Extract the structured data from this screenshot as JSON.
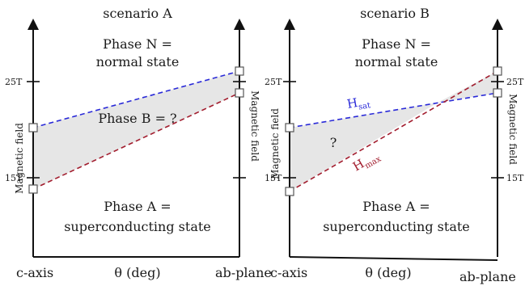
{
  "panels": [
    {
      "title": "scenario A",
      "phase_n": [
        "Phase N =",
        "normal state"
      ],
      "phase_a": [
        "Phase A =",
        "superconducting state"
      ],
      "middle_label": "Phase B =  ?",
      "tick_high": "25T",
      "tick_low": "15T",
      "y_axis_label": "Magnetic field",
      "x_left": "c-axis",
      "x_mid": "θ (deg)",
      "x_right": "ab-plane"
    },
    {
      "title": "scenario B",
      "phase_n": [
        "Phase N =",
        "normal state"
      ],
      "phase_a": [
        "Phase A =",
        "superconducting state"
      ],
      "middle_label": "?",
      "tick_high": "25T",
      "tick_low": "15T",
      "y_axis_label": "Magnetic field",
      "x_left": "c-axis",
      "x_mid": "θ (deg)",
      "x_right": "ab-plane",
      "hsat_main": "H",
      "hsat_sub": "sat",
      "hmax_main": "H",
      "hmax_sub": "max"
    }
  ],
  "colors": {
    "sat_line": "#2a2ad8",
    "max_line": "#a21d2e",
    "region_fill": "#e6e6e6",
    "axes": "#111111"
  }
}
